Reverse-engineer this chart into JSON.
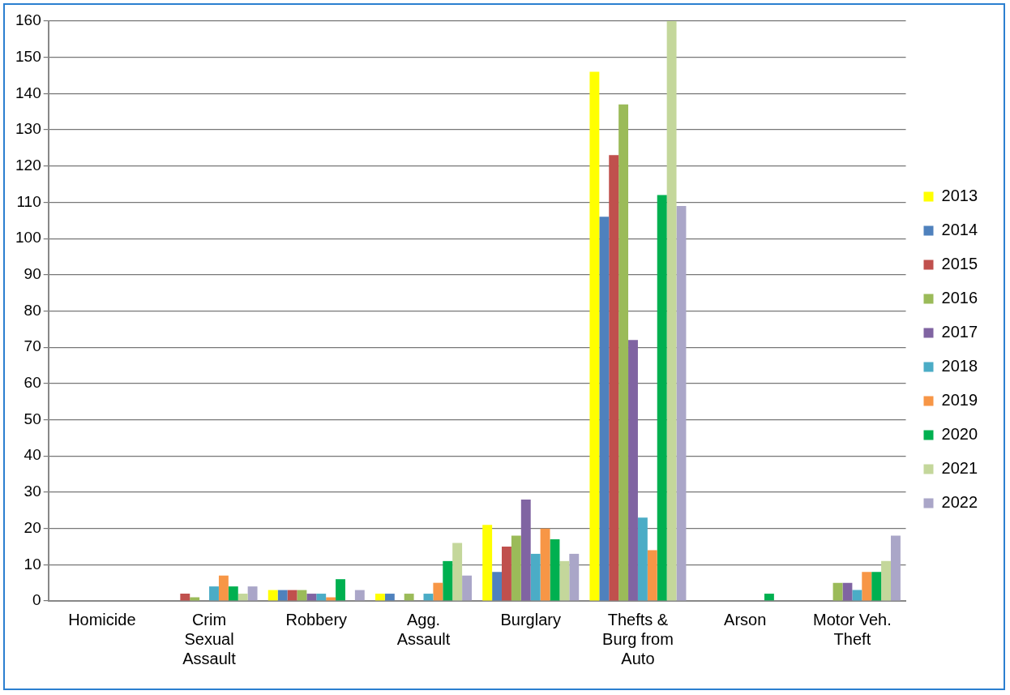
{
  "chart_data": {
    "type": "bar",
    "categories": [
      "Homicide",
      "Crim Sexual Assault",
      "Robbery",
      "Agg. Assault",
      "Burglary",
      "Thefts & Burg from Auto",
      "Arson",
      "Motor Veh. Theft"
    ],
    "series": [
      {
        "name": "2013",
        "color": "#ffff00",
        "values": [
          0,
          0,
          3,
          2,
          21,
          146,
          0,
          0
        ]
      },
      {
        "name": "2014",
        "color": "#4f81bd",
        "values": [
          0,
          0,
          3,
          2,
          8,
          106,
          0,
          0
        ]
      },
      {
        "name": "2015",
        "color": "#c0504d",
        "values": [
          0,
          2,
          3,
          0,
          15,
          123,
          0,
          0
        ]
      },
      {
        "name": "2016",
        "color": "#9bbb59",
        "values": [
          0,
          1,
          3,
          2,
          18,
          137,
          0,
          5
        ]
      },
      {
        "name": "2017",
        "color": "#8064a2",
        "values": [
          0,
          0,
          2,
          0,
          28,
          72,
          0,
          5
        ]
      },
      {
        "name": "2018",
        "color": "#4bacc6",
        "values": [
          0,
          4,
          2,
          2,
          13,
          23,
          0,
          3
        ]
      },
      {
        "name": "2019",
        "color": "#f79646",
        "values": [
          0,
          7,
          1,
          5,
          20,
          14,
          0,
          8
        ]
      },
      {
        "name": "2020",
        "color": "#00b050",
        "values": [
          0,
          4,
          6,
          11,
          17,
          112,
          2,
          8
        ]
      },
      {
        "name": "2021",
        "color": "#c4d79b",
        "values": [
          0,
          2,
          0,
          16,
          11,
          160,
          0,
          11
        ]
      },
      {
        "name": "2022",
        "color": "#aaa6c8",
        "values": [
          0,
          4,
          3,
          7,
          13,
          109,
          0,
          18
        ]
      }
    ],
    "ylim": [
      0,
      160
    ],
    "yticks": [
      0,
      10,
      20,
      30,
      40,
      50,
      60,
      70,
      80,
      90,
      100,
      110,
      120,
      130,
      140,
      150,
      160
    ],
    "grid": "y",
    "legend": "right"
  }
}
